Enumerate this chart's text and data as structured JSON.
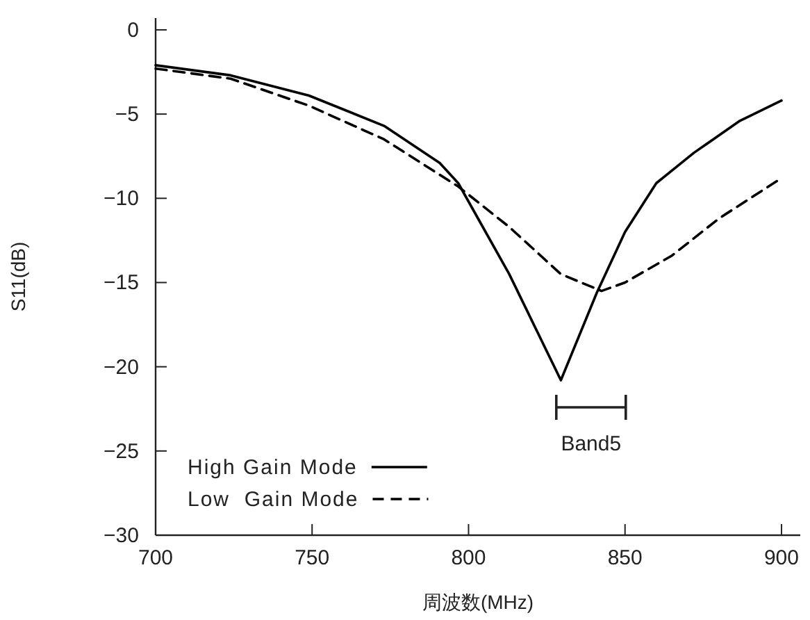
{
  "chart_data": {
    "type": "line",
    "xlabel": "周波数(MHz)",
    "ylabel": "S11(dB)",
    "xlim": [
      700,
      906
    ],
    "ylim": [
      -30,
      0.7
    ],
    "xticks": [
      700,
      750,
      800,
      850,
      900
    ],
    "yticks": [
      -30,
      -25,
      -20,
      -15,
      -10,
      -5,
      0
    ],
    "legend": "bottom left",
    "grid": false,
    "marker": "none",
    "annotations": [
      "Band5"
    ],
    "series": [
      {
        "name": "High Gain Mode",
        "color": "#000000",
        "line_style": "solid",
        "x": [
          700,
          724,
          749,
          773,
          790.8,
          796.7,
          813,
          829.5,
          841,
          850,
          860,
          872,
          886.7,
          900
        ],
        "values": [
          -2.1,
          -2.7,
          -3.9,
          -5.7,
          -7.9,
          -9.1,
          -14.5,
          -20.8,
          -15.6,
          -12.0,
          -9.1,
          -7.3,
          -5.4,
          -4.2
        ]
      },
      {
        "name": "Low  Gain Mode",
        "color": "#000000",
        "line_style": "dashed",
        "x": [
          700,
          724,
          749,
          773,
          796.7,
          813,
          829.5,
          842.5,
          850,
          865,
          880,
          900
        ],
        "values": [
          -2.3,
          -2.9,
          -4.5,
          -6.5,
          -9.3,
          -11.7,
          -14.5,
          -15.5,
          -15.0,
          -13.4,
          -11.2,
          -8.8
        ]
      }
    ]
  }
}
